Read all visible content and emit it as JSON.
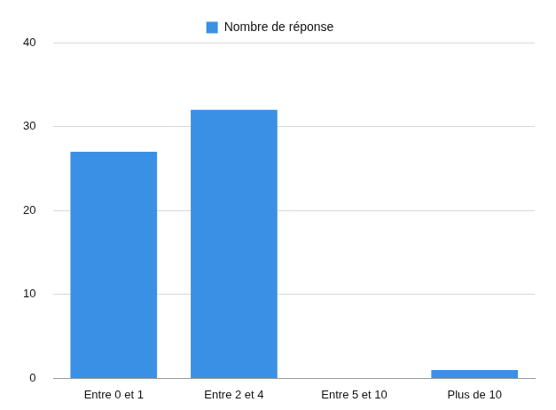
{
  "chart_data": {
    "type": "bar",
    "categories": [
      "Entre 0 et 1",
      "Entre 2 et 4",
      "Entre 5 et 10",
      "Plus de 10"
    ],
    "series": [
      {
        "name": "Nombre de réponse",
        "color": "#3a90e4",
        "values": [
          27,
          32,
          0,
          1
        ]
      }
    ],
    "ylim": [
      0,
      40
    ],
    "yticks": [
      0,
      10,
      20,
      30,
      40
    ],
    "grid": true,
    "legend": "top"
  }
}
